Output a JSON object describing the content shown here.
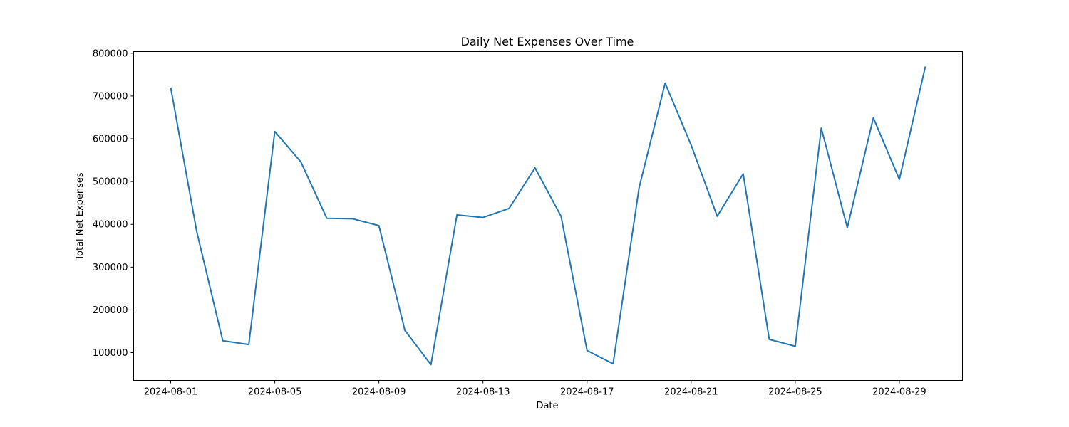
{
  "chart_data": {
    "type": "line",
    "title": "Daily Net Expenses Over Time",
    "xlabel": "Date",
    "ylabel": "Total Net Expenses",
    "x": [
      "2024-08-01",
      "2024-08-02",
      "2024-08-03",
      "2024-08-04",
      "2024-08-05",
      "2024-08-06",
      "2024-08-07",
      "2024-08-08",
      "2024-08-09",
      "2024-08-10",
      "2024-08-11",
      "2024-08-12",
      "2024-08-13",
      "2024-08-14",
      "2024-08-15",
      "2024-08-16",
      "2024-08-17",
      "2024-08-18",
      "2024-08-19",
      "2024-08-20",
      "2024-08-21",
      "2024-08-22",
      "2024-08-23",
      "2024-08-24",
      "2024-08-25",
      "2024-08-26",
      "2024-08-27",
      "2024-08-28",
      "2024-08-29",
      "2024-08-30"
    ],
    "series": [
      {
        "values": [
          720000,
          383000,
          128000,
          119000,
          617000,
          546000,
          414000,
          413000,
          397000,
          152000,
          72000,
          422000,
          416000,
          437000,
          532000,
          419000,
          105000,
          74000,
          486000,
          730000,
          585000,
          419000,
          518000,
          131000,
          115000,
          625000,
          392000,
          649000,
          505000,
          769000
        ],
        "color": "#1f77b4"
      }
    ],
    "xlim": [
      "2024-07-30 13:48",
      "2024-08-31 10:12"
    ],
    "ylim": [
      35150,
      803850
    ],
    "x_ticks": [
      "2024-08-01",
      "2024-08-05",
      "2024-08-09",
      "2024-08-13",
      "2024-08-17",
      "2024-08-21",
      "2024-08-25",
      "2024-08-29"
    ],
    "y_ticks": [
      100000,
      200000,
      300000,
      400000,
      500000,
      600000,
      700000,
      800000
    ],
    "grid": false,
    "legend": "none"
  }
}
